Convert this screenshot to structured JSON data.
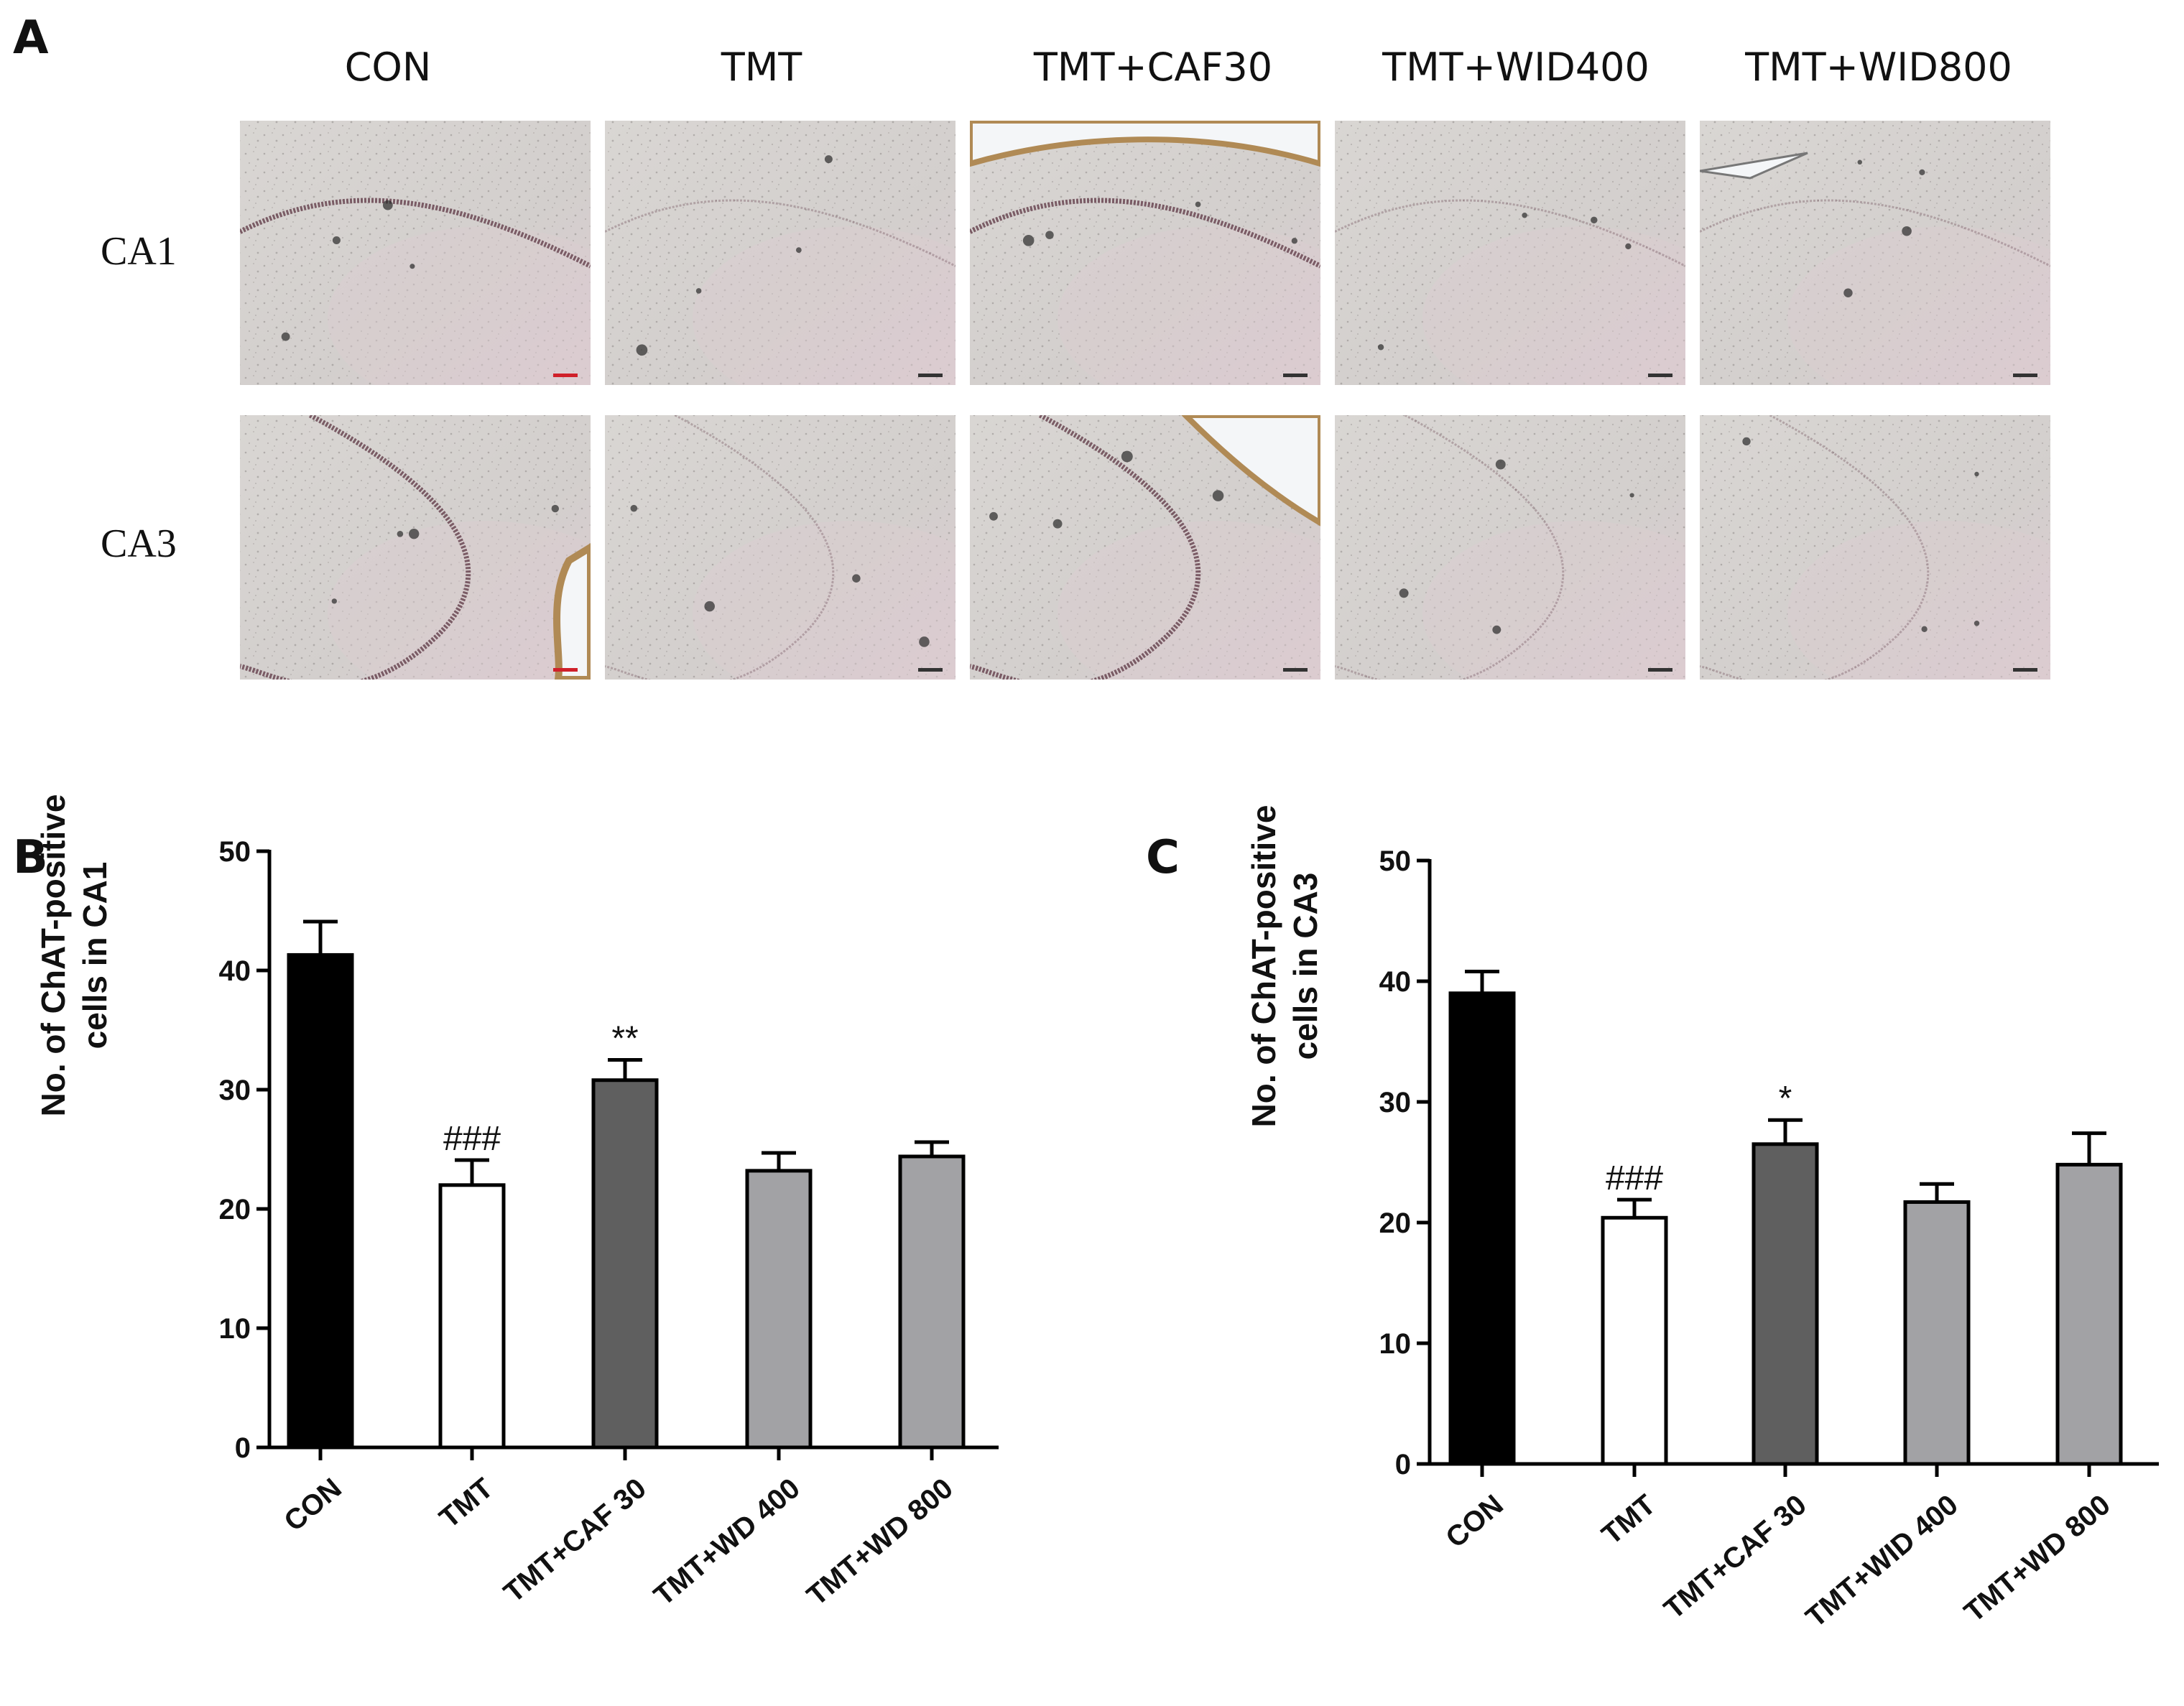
{
  "figure": {
    "panel_a": {
      "letter": "A",
      "columns": [
        "CON",
        "TMT",
        "TMT+CAF30",
        "TMT+WID400",
        "TMT+WID800"
      ],
      "rows": [
        "CA1",
        "CA3"
      ],
      "tile_colors": {
        "base": "#d6d2cf",
        "tissue_tint": "#dccdd0",
        "cell_layer": "#6a4752",
        "brown_edge": "#b08a55",
        "dark_spot": "#2a2a2a"
      }
    }
  },
  "chart_data": [
    {
      "panel_letter": "B",
      "type": "bar",
      "categories": [
        "CON",
        "TMT",
        "TMT+CAF 30",
        "TMT+WD 400",
        "TMT+WD 800"
      ],
      "values": [
        41.3,
        22.0,
        30.8,
        23.2,
        24.4
      ],
      "errors": [
        2.8,
        2.1,
        1.7,
        1.5,
        1.2
      ],
      "colors": [
        "#000000",
        "#ffffff",
        "#5f5f5f",
        "#a2a2a5",
        "#a2a2a5"
      ],
      "annotations": [
        "",
        "###",
        "**",
        "",
        ""
      ],
      "ylabel_lines": [
        "No. of  ChAT-positive",
        "cells in CA1"
      ],
      "ylim": [
        0,
        50
      ],
      "yticks": [
        0,
        10,
        20,
        30,
        40,
        50
      ],
      "grid": false,
      "legend": "none"
    },
    {
      "panel_letter": "C",
      "type": "bar",
      "categories": [
        "CON",
        "TMT",
        "TMT+CAF 30",
        "TMT+WID 400",
        "TMT+WD 800"
      ],
      "values": [
        39.0,
        20.4,
        26.5,
        21.7,
        24.8
      ],
      "errors": [
        1.8,
        1.5,
        2.0,
        1.5,
        2.6
      ],
      "colors": [
        "#000000",
        "#ffffff",
        "#5f5f5f",
        "#a2a2a5",
        "#a2a2a5"
      ],
      "annotations": [
        "",
        "###",
        "*",
        "",
        ""
      ],
      "ylabel_lines": [
        "No. of  ChAT-positive",
        "cells in CA3"
      ],
      "ylim": [
        0,
        50
      ],
      "yticks": [
        0,
        10,
        20,
        30,
        40,
        50
      ],
      "grid": false,
      "legend": "none"
    }
  ]
}
